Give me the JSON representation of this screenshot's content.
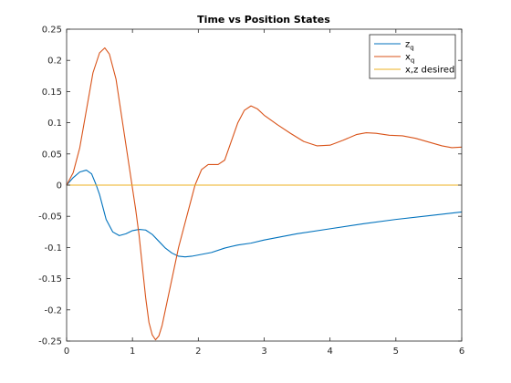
{
  "chart_data": {
    "type": "line",
    "title": "Time vs Position States",
    "xlabel": "",
    "ylabel": "",
    "xlim": [
      0,
      6
    ],
    "ylim": [
      -0.25,
      0.25
    ],
    "x_ticks": [
      0,
      1,
      2,
      3,
      4,
      5,
      6
    ],
    "x_tick_labels": [
      "0",
      "1",
      "2",
      "3",
      "4",
      "5",
      "6"
    ],
    "y_ticks": [
      0.25,
      0.2,
      0.15,
      0.1,
      0.05,
      0,
      -0.05,
      -0.1,
      -0.15,
      -0.2,
      -0.25
    ],
    "y_tick_labels": [
      "0.25",
      "0.2",
      "0.15",
      "0.1",
      "0.05",
      "0",
      "-0.05",
      "-0.1",
      "-0.15",
      "-0.2",
      "-0.25"
    ],
    "grid": false,
    "legend_position": "top-right",
    "series": [
      {
        "name": "z",
        "name_subscript": "q",
        "color": "#0072BD",
        "points": [
          [
            0,
            0
          ],
          [
            0.1,
            0.012
          ],
          [
            0.2,
            0.021
          ],
          [
            0.3,
            0.024
          ],
          [
            0.38,
            0.018
          ],
          [
            0.45,
            0.0
          ],
          [
            0.5,
            -0.015
          ],
          [
            0.55,
            -0.035
          ],
          [
            0.6,
            -0.055
          ],
          [
            0.7,
            -0.075
          ],
          [
            0.8,
            -0.081
          ],
          [
            0.9,
            -0.078
          ],
          [
            1.0,
            -0.073
          ],
          [
            1.1,
            -0.071
          ],
          [
            1.2,
            -0.072
          ],
          [
            1.3,
            -0.079
          ],
          [
            1.4,
            -0.09
          ],
          [
            1.5,
            -0.101
          ],
          [
            1.6,
            -0.109
          ],
          [
            1.7,
            -0.114
          ],
          [
            1.8,
            -0.115
          ],
          [
            1.9,
            -0.114
          ],
          [
            2.0,
            -0.112
          ],
          [
            2.2,
            -0.108
          ],
          [
            2.4,
            -0.101
          ],
          [
            2.6,
            -0.096
          ],
          [
            2.8,
            -0.093
          ],
          [
            3.0,
            -0.088
          ],
          [
            3.5,
            -0.078
          ],
          [
            4.0,
            -0.07
          ],
          [
            4.5,
            -0.062
          ],
          [
            5.0,
            -0.055
          ],
          [
            5.5,
            -0.049
          ],
          [
            6.0,
            -0.043
          ]
        ]
      },
      {
        "name": "x",
        "name_subscript": "q",
        "color": "#D95319",
        "points": [
          [
            0,
            0
          ],
          [
            0.1,
            0.02
          ],
          [
            0.2,
            0.06
          ],
          [
            0.3,
            0.12
          ],
          [
            0.4,
            0.18
          ],
          [
            0.5,
            0.212
          ],
          [
            0.58,
            0.22
          ],
          [
            0.65,
            0.21
          ],
          [
            0.75,
            0.17
          ],
          [
            0.85,
            0.1
          ],
          [
            0.95,
            0.03
          ],
          [
            1.0,
            -0.005
          ],
          [
            1.05,
            -0.04
          ],
          [
            1.1,
            -0.08
          ],
          [
            1.15,
            -0.13
          ],
          [
            1.2,
            -0.18
          ],
          [
            1.25,
            -0.22
          ],
          [
            1.3,
            -0.24
          ],
          [
            1.35,
            -0.248
          ],
          [
            1.4,
            -0.242
          ],
          [
            1.45,
            -0.225
          ],
          [
            1.5,
            -0.2
          ],
          [
            1.6,
            -0.15
          ],
          [
            1.7,
            -0.1
          ],
          [
            1.8,
            -0.06
          ],
          [
            1.9,
            -0.02
          ],
          [
            1.95,
            0.0
          ],
          [
            2.05,
            0.025
          ],
          [
            2.15,
            0.033
          ],
          [
            2.3,
            0.033
          ],
          [
            2.4,
            0.04
          ],
          [
            2.5,
            0.07
          ],
          [
            2.6,
            0.1
          ],
          [
            2.7,
            0.12
          ],
          [
            2.8,
            0.127
          ],
          [
            2.9,
            0.122
          ],
          [
            3.0,
            0.112
          ],
          [
            3.2,
            0.097
          ],
          [
            3.4,
            0.083
          ],
          [
            3.6,
            0.07
          ],
          [
            3.8,
            0.063
          ],
          [
            4.0,
            0.064
          ],
          [
            4.2,
            0.072
          ],
          [
            4.4,
            0.081
          ],
          [
            4.55,
            0.084
          ],
          [
            4.7,
            0.083
          ],
          [
            4.9,
            0.08
          ],
          [
            5.1,
            0.079
          ],
          [
            5.3,
            0.075
          ],
          [
            5.5,
            0.069
          ],
          [
            5.7,
            0.063
          ],
          [
            5.85,
            0.06
          ],
          [
            6.0,
            0.061
          ]
        ]
      },
      {
        "name": "x,z desired",
        "name_subscript": "",
        "color": "#EDB120",
        "points": [
          [
            0,
            0
          ],
          [
            6,
            0
          ]
        ]
      }
    ]
  }
}
